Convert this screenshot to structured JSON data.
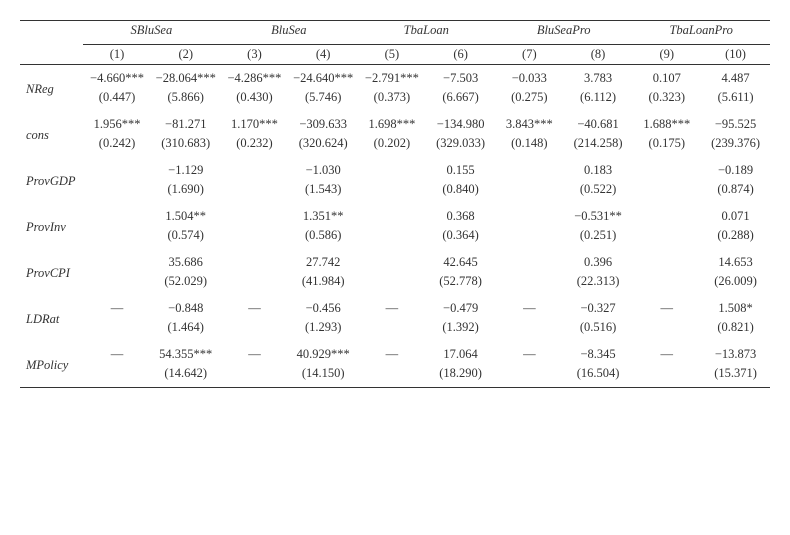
{
  "groups": [
    "SBluSea",
    "BluSea",
    "TbaLoan",
    "BluSeaPro",
    "TbaLoanPro"
  ],
  "cols": [
    "(1)",
    "(2)",
    "(3)",
    "(4)",
    "(5)",
    "(6)",
    "(7)",
    "(8)",
    "(9)",
    "(10)"
  ],
  "rows": [
    {
      "label": "NReg",
      "coef": [
        "−4.660***",
        "−28.064***",
        "−4.286***",
        "−24.640***",
        "−2.791***",
        "−7.503",
        "−0.033",
        "3.783",
        "0.107",
        "4.487"
      ],
      "se": [
        "(0.447)",
        "(5.866)",
        "(0.430)",
        "(5.746)",
        "(0.373)",
        "(6.667)",
        "(0.275)",
        "(6.112)",
        "(0.323)",
        "(5.611)"
      ]
    },
    {
      "label": "cons",
      "coef": [
        "1.956***",
        "−81.271",
        "1.170***",
        "−309.633",
        "1.698***",
        "−134.980",
        "3.843***",
        "−40.681",
        "1.688***",
        "−95.525"
      ],
      "se": [
        "(0.242)",
        "(310.683)",
        "(0.232)",
        "(320.624)",
        "(0.202)",
        "(329.033)",
        "(0.148)",
        "(214.258)",
        "(0.175)",
        "(239.376)"
      ]
    },
    {
      "label": "ProvGDP",
      "coef": [
        "",
        "−1.129",
        "",
        "−1.030",
        "",
        "0.155",
        "",
        "0.183",
        "",
        "−0.189"
      ],
      "se": [
        "",
        "(1.690)",
        "",
        "(1.543)",
        "",
        "(0.840)",
        "",
        "(0.522)",
        "",
        "(0.874)"
      ]
    },
    {
      "label": "ProvInv",
      "coef": [
        "",
        "1.504**",
        "",
        "1.351**",
        "",
        "0.368",
        "",
        "−0.531**",
        "",
        "0.071"
      ],
      "se": [
        "",
        "(0.574)",
        "",
        "(0.586)",
        "",
        "(0.364)",
        "",
        "(0.251)",
        "",
        "(0.288)"
      ]
    },
    {
      "label": "ProvCPI",
      "coef": [
        "",
        "35.686",
        "",
        "27.742",
        "",
        "42.645",
        "",
        "0.396",
        "",
        "14.653"
      ],
      "se": [
        "",
        "(52.029)",
        "",
        "(41.984)",
        "",
        "(52.778)",
        "",
        "(22.313)",
        "",
        "(26.009)"
      ]
    },
    {
      "label": "LDRat",
      "coef": [
        "—",
        "−0.848",
        "—",
        "−0.456",
        "—",
        "−0.479",
        "—",
        "−0.327",
        "—",
        "1.508*"
      ],
      "se": [
        "",
        "(1.464)",
        "",
        "(1.293)",
        "",
        "(1.392)",
        "",
        "(0.516)",
        "",
        "(0.821)"
      ]
    },
    {
      "label": "MPolicy",
      "coef": [
        "—",
        "54.355***",
        "—",
        "40.929***",
        "—",
        "17.064",
        "—",
        "−8.345",
        "—",
        "−13.873"
      ],
      "se": [
        "",
        "(14.642)",
        "",
        "(14.150)",
        "",
        "(18.290)",
        "",
        "(16.504)",
        "",
        "(15.371)"
      ]
    }
  ]
}
